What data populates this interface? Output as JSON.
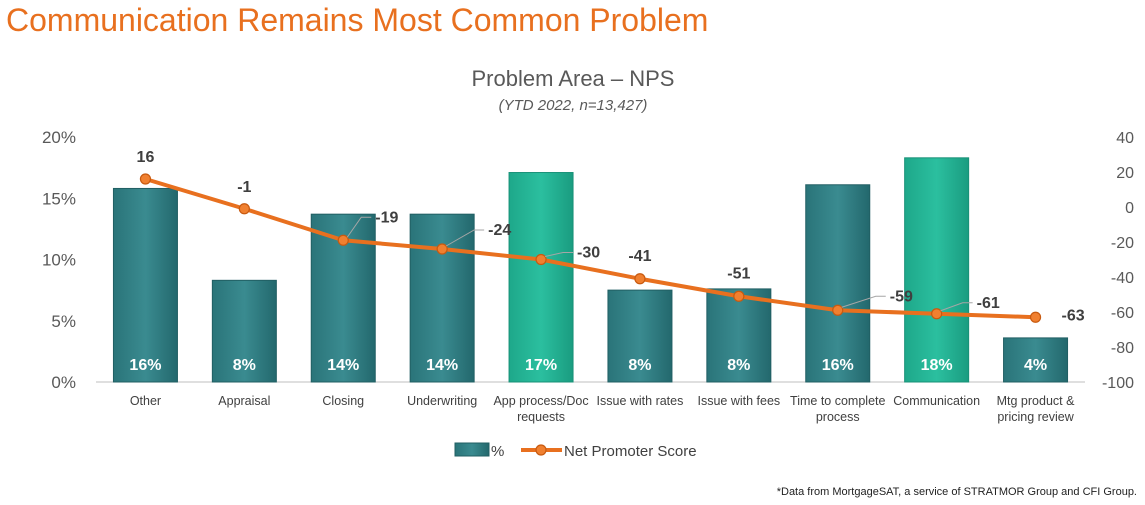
{
  "page": {
    "title": "Communication Remains Most Common Problem",
    "footnote": "*Data from MortgageSAT, a service of STRATMOR Group and CFI Group."
  },
  "colors": {
    "title": "#e8701f",
    "bar_dark": "#2f7d82",
    "bar_highlight": "#22b596",
    "line": "#e8701f",
    "axis_text": "#595959",
    "gridline": "#d9d9d9"
  },
  "chart_data": {
    "type": "bar",
    "title": "Problem Area – NPS",
    "subtitle": "(YTD 2022, n=13,427)",
    "categories": [
      [
        "Other"
      ],
      [
        "Appraisal"
      ],
      [
        "Closing"
      ],
      [
        "Underwriting"
      ],
      [
        "App process/Doc",
        "requests"
      ],
      [
        "Issue with rates"
      ],
      [
        "Issue with fees"
      ],
      [
        "Time to complete",
        "process"
      ],
      [
        "Communication"
      ],
      [
        "Mtg product &",
        "pricing review"
      ]
    ],
    "series": [
      {
        "name": "%",
        "type": "bar",
        "axis": "left",
        "values": [
          15.8,
          8.3,
          13.7,
          13.7,
          17.1,
          7.5,
          7.6,
          16.1,
          18.3,
          3.6
        ],
        "labels": [
          "16%",
          "8%",
          "14%",
          "14%",
          "17%",
          "8%",
          "8%",
          "16%",
          "18%",
          "4%"
        ],
        "highlight": [
          false,
          false,
          false,
          false,
          true,
          false,
          false,
          false,
          true,
          false
        ]
      },
      {
        "name": "Net Promoter Score",
        "type": "line",
        "axis": "right",
        "values": [
          16,
          -1,
          -19,
          -24,
          -30,
          -41,
          -51,
          -59,
          -61,
          -63
        ],
        "labels": [
          "16",
          "-1",
          "-19",
          "-24",
          "-30",
          "-41",
          "-51",
          "-59",
          "-61",
          "-63"
        ]
      }
    ],
    "y_left": {
      "min": 0,
      "max": 20,
      "ticks": [
        "0%",
        "5%",
        "10%",
        "15%",
        "20%"
      ]
    },
    "y_right": {
      "min": -100,
      "max": 40,
      "ticks": [
        "-100",
        "-80",
        "-60",
        "-40",
        "-20",
        "0",
        "20",
        "40"
      ]
    },
    "grid": false,
    "legend": {
      "position": "bottom",
      "entries": [
        "%",
        "Net Promoter Score"
      ]
    }
  }
}
